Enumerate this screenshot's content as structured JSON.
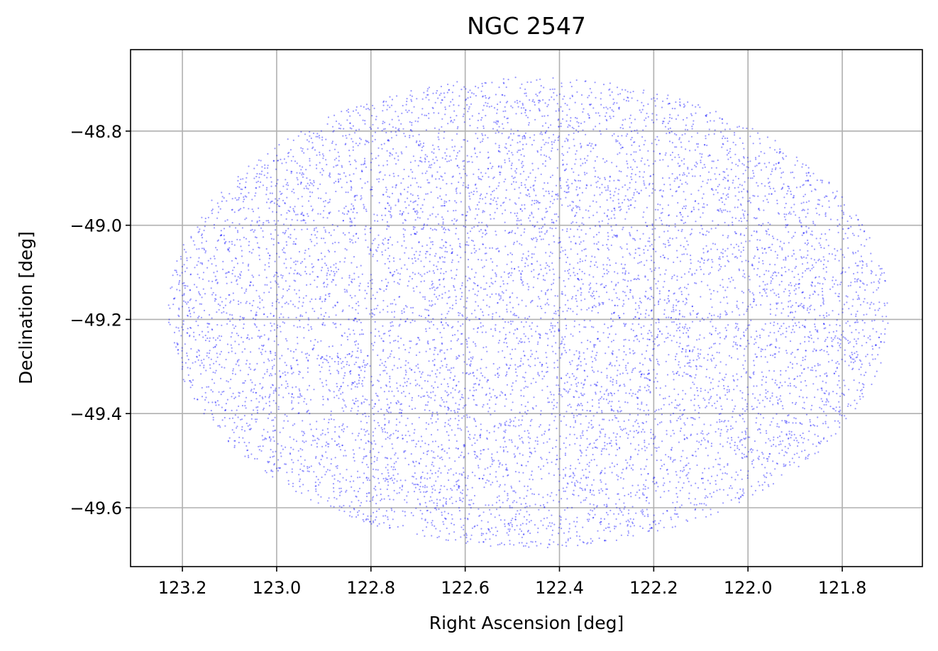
{
  "chart_data": {
    "type": "scatter",
    "title": "NGC 2547",
    "xlabel": "Right Ascension [deg]",
    "ylabel": "Declination [deg]",
    "xlim": [
      123.31,
      121.63
    ],
    "ylim": [
      -49.725,
      -48.627
    ],
    "x_inverted": true,
    "grid": true,
    "x_ticks": [
      123.2,
      123.0,
      122.8,
      122.6,
      122.4,
      122.2,
      122.0,
      121.8
    ],
    "x_tick_labels": [
      "123.2",
      "123.0",
      "122.8",
      "122.6",
      "122.4",
      "122.2",
      "122.0",
      "121.8"
    ],
    "y_ticks": [
      -48.8,
      -49.0,
      -49.2,
      -49.4,
      -49.6
    ],
    "y_tick_labels": [
      "−48.8",
      "−49.0",
      "−49.2",
      "−49.4",
      "−49.6"
    ],
    "point_color": "#0000ff",
    "series": [
      {
        "distribution": "uniform-ellipse",
        "center": [
          122.465,
          -49.185
        ],
        "radius_ra": 0.765,
        "radius_dec": 0.5,
        "count": 9000
      }
    ]
  }
}
